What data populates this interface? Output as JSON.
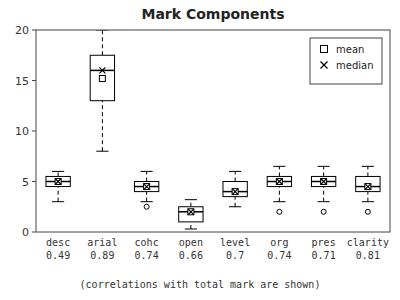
{
  "chart_data": {
    "type": "box",
    "title": "Mark Components",
    "subtitle": "(correlations with total mark are shown)",
    "categories": [
      "desc",
      "arial",
      "cohc",
      "open",
      "level",
      "org",
      "pres",
      "clarity"
    ],
    "correlations": [
      "0.49",
      "0.89",
      "0.74",
      "0.66",
      "0.7",
      "0.74",
      "0.71",
      "0.81"
    ],
    "boxes": [
      {
        "whislo": 3.0,
        "q1": 4.5,
        "q3": 5.5,
        "whishi": 6.0,
        "fliers": []
      },
      {
        "whislo": 8.0,
        "q1": 13.0,
        "q3": 17.5,
        "whishi": 20.0,
        "fliers": []
      },
      {
        "whislo": 3.0,
        "q1": 4.0,
        "q3": 5.0,
        "whishi": 6.0,
        "fliers": [
          2.5
        ]
      },
      {
        "whislo": 0.3,
        "q1": 1.0,
        "q3": 2.5,
        "whishi": 3.2,
        "fliers": []
      },
      {
        "whislo": 2.5,
        "q1": 3.5,
        "q3": 5.0,
        "whishi": 6.0,
        "fliers": []
      },
      {
        "whislo": 3.0,
        "q1": 4.5,
        "q3": 5.5,
        "whishi": 6.5,
        "fliers": [
          2.0
        ]
      },
      {
        "whislo": 3.0,
        "q1": 4.5,
        "q3": 5.5,
        "whishi": 6.5,
        "fliers": [
          2.0
        ]
      },
      {
        "whislo": 3.0,
        "q1": 4.0,
        "q3": 5.5,
        "whishi": 6.5,
        "fliers": [
          2.0
        ]
      }
    ],
    "series": [
      {
        "name": "mean",
        "marker": "square",
        "values": [
          5.0,
          15.2,
          4.5,
          2.0,
          4.0,
          5.0,
          5.0,
          4.5
        ]
      },
      {
        "name": "median",
        "marker": "x",
        "values": [
          5.0,
          16.0,
          4.5,
          2.0,
          4.0,
          5.0,
          5.0,
          4.5
        ]
      }
    ],
    "color": "#ffffff",
    "ylim": [
      0,
      20
    ],
    "yticks": [
      0,
      5,
      10,
      15,
      20
    ],
    "legend": "upper right"
  }
}
